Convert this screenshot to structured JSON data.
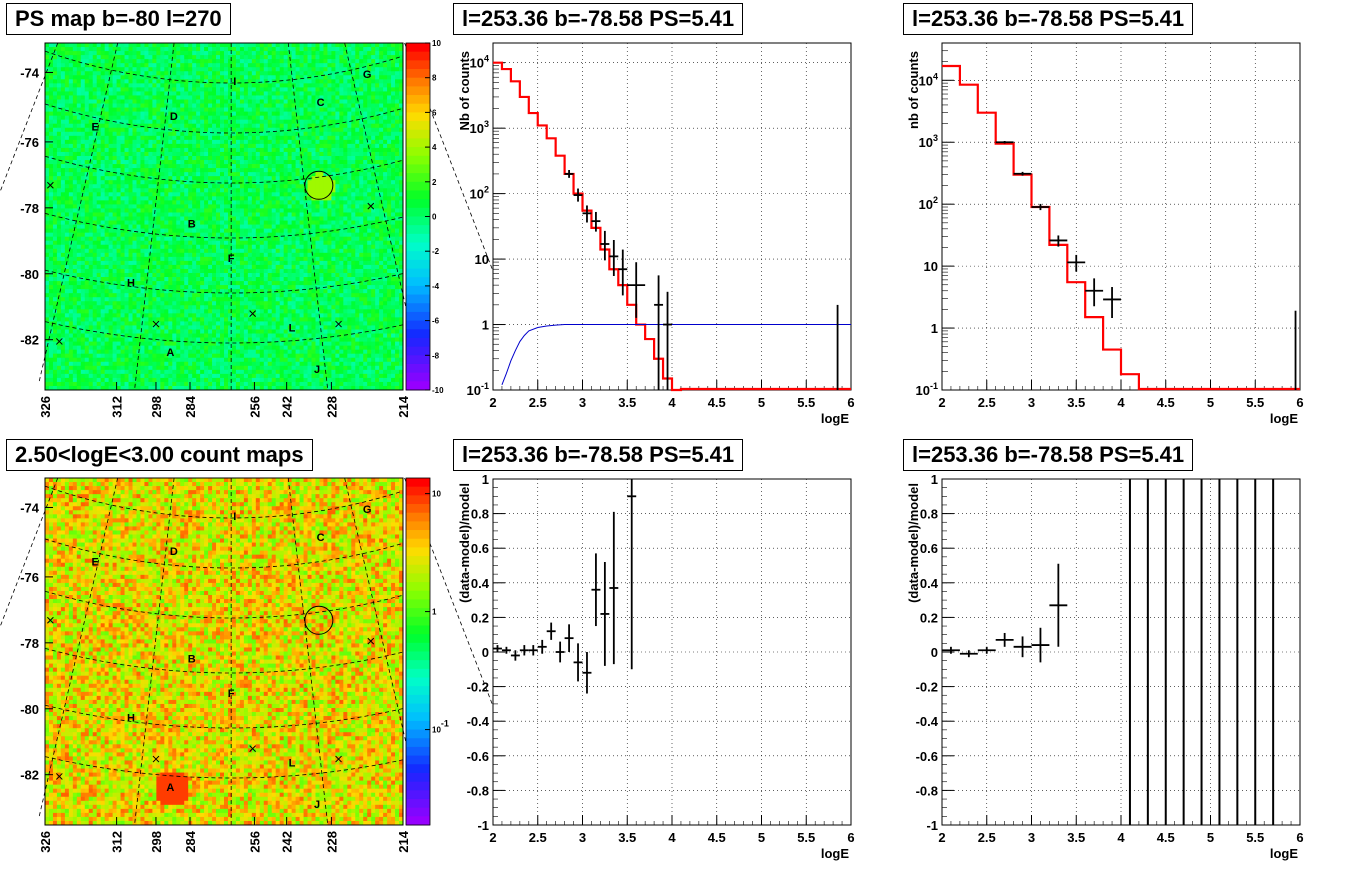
{
  "chart_data": [
    {
      "id": "ps_map",
      "type": "heatmap",
      "title": "PS map b=-80 l=270",
      "y_ticks": [
        "-74",
        "-76",
        "-78",
        "-80",
        "-82"
      ],
      "x_ticks": [
        "326",
        "312",
        "298",
        "284",
        "256",
        "242",
        "228",
        "214"
      ],
      "colorbar_ticks": [
        "10",
        "8",
        "6",
        "4",
        "2",
        "0",
        "-2",
        "-4",
        "-6",
        "-8",
        "-10"
      ],
      "colorbar_range": [
        -10,
        10
      ],
      "region_labels": [
        "G",
        "I",
        "C",
        "E",
        "D",
        "B",
        "F",
        "H",
        "L",
        "A",
        "J"
      ],
      "grid": true
    },
    {
      "id": "count_spectrum",
      "type": "line",
      "title": "l=253.36 b=-78.58 PS=5.41",
      "xlabel": "logE",
      "ylabel": "Nb of counts",
      "xlim": [
        2,
        6
      ],
      "ylim": [
        0.1,
        20000
      ],
      "log_y": true,
      "x_ticks": [
        "2",
        "2.5",
        "3",
        "3.5",
        "4",
        "4.5",
        "5",
        "5.5",
        "6"
      ],
      "y_ticks": [
        "10^{-1}",
        "1",
        "10",
        "10^{2}",
        "10^{3}",
        "10^{4}"
      ],
      "model_bins": {
        "edges": [
          2.0,
          2.1,
          2.2,
          2.3,
          2.4,
          2.5,
          2.6,
          2.7,
          2.8,
          2.9,
          3.0,
          3.1,
          3.2,
          3.3,
          3.4,
          3.5,
          3.6,
          3.7,
          3.8,
          3.9,
          4.0,
          4.1
        ],
        "values": [
          10000,
          8000,
          5200,
          3000,
          1700,
          1100,
          700,
          380,
          200,
          100,
          55,
          30,
          14,
          7,
          4,
          2,
          1,
          0.6,
          0.3,
          0.15,
          0.1
        ]
      },
      "efficiency_curve": {
        "x": [
          2.1,
          2.15,
          2.2,
          2.25,
          2.3,
          2.35,
          2.4,
          2.5,
          2.6,
          2.7,
          2.8,
          3.0,
          3.5,
          6.0
        ],
        "y": [
          0.12,
          0.18,
          0.28,
          0.4,
          0.55,
          0.68,
          0.8,
          0.9,
          0.95,
          0.98,
          1.0,
          1.0,
          1.0,
          1.0
        ]
      },
      "data_points": [
        {
          "x": 2.85,
          "y": 200,
          "xerr": 0.05,
          "yerr": [
            0.06,
            0.06
          ]
        },
        {
          "x": 2.95,
          "y": 95,
          "xerr": 0.05,
          "yerr": [
            0.1,
            0.1
          ]
        },
        {
          "x": 3.05,
          "y": 50,
          "xerr": 0.05,
          "yerr": [
            0.14,
            0.12
          ]
        },
        {
          "x": 3.15,
          "y": 38,
          "xerr": 0.05,
          "yerr": [
            0.16,
            0.14
          ]
        },
        {
          "x": 3.25,
          "y": 17,
          "xerr": 0.05,
          "yerr": [
            0.25,
            0.2
          ]
        },
        {
          "x": 3.35,
          "y": 11,
          "xerr": 0.05,
          "yerr": [
            0.3,
            0.25
          ]
        },
        {
          "x": 3.45,
          "y": 7,
          "xerr": 0.05,
          "yerr": [
            0.4,
            0.3
          ]
        },
        {
          "x": 3.6,
          "y": 4,
          "xerr": 0.1,
          "yerr": [
            0.5,
            0.35
          ]
        },
        {
          "x": 3.85,
          "y": 2,
          "xerr": 0.05,
          "yerr": [
            1.3,
            0.45
          ]
        },
        {
          "x": 3.95,
          "y": 1,
          "xerr": 0.05,
          "yerr": [
            1.0,
            0.5
          ]
        },
        {
          "x": 5.85,
          "y": 1,
          "xerr": 0.0,
          "yerr": [
            1.0,
            0.3
          ]
        }
      ]
    },
    {
      "id": "count_spectrum_rebinned",
      "type": "line",
      "title": "l=253.36 b=-78.58 PS=5.41",
      "xlabel": "logE",
      "ylabel": "nb of counts",
      "xlim": [
        2,
        6
      ],
      "ylim": [
        0.1,
        40000
      ],
      "log_y": true,
      "x_ticks": [
        "2",
        "2.5",
        "3",
        "3.5",
        "4",
        "4.5",
        "5",
        "5.5",
        "6"
      ],
      "y_ticks": [
        "10^{-1}",
        "1",
        "10",
        "10^{2}",
        "10^{3}",
        "10^{4}"
      ],
      "model_bins": {
        "edges": [
          2.0,
          2.2,
          2.4,
          2.6,
          2.8,
          3.0,
          3.2,
          3.4,
          3.6,
          3.8,
          4.0,
          4.2
        ],
        "values": [
          17000,
          8500,
          3000,
          950,
          300,
          90,
          22,
          5.5,
          1.5,
          0.45,
          0.18
        ]
      },
      "data_points": [
        {
          "x": 2.7,
          "y": 1000,
          "xerr": 0.1,
          "yerr": [
            0.02,
            0.02
          ]
        },
        {
          "x": 2.9,
          "y": 310,
          "xerr": 0.1,
          "yerr": [
            0.03,
            0.03
          ]
        },
        {
          "x": 3.1,
          "y": 90,
          "xerr": 0.1,
          "yerr": [
            0.05,
            0.05
          ]
        },
        {
          "x": 3.3,
          "y": 26,
          "xerr": 0.1,
          "yerr": [
            0.1,
            0.08
          ]
        },
        {
          "x": 3.5,
          "y": 11.5,
          "xerr": 0.1,
          "yerr": [
            0.15,
            0.12
          ]
        },
        {
          "x": 3.7,
          "y": 4,
          "xerr": 0.1,
          "yerr": [
            0.25,
            0.2
          ]
        },
        {
          "x": 3.9,
          "y": 2.9,
          "xerr": 0.1,
          "yerr": [
            0.3,
            0.2
          ]
        },
        {
          "x": 5.95,
          "y": 1,
          "xerr": 0.0,
          "yerr": [
            1.0,
            0.28
          ]
        }
      ]
    },
    {
      "id": "count_map",
      "type": "heatmap",
      "title": "2.50<logE<3.00 count maps",
      "y_ticks": [
        "-74",
        "-76",
        "-78",
        "-80",
        "-82"
      ],
      "x_ticks": [
        "326",
        "312",
        "298",
        "284",
        "256",
        "242",
        "228",
        "214"
      ],
      "colorbar_ticks": [
        "10",
        "1",
        "10^{-1}"
      ],
      "log_scale": true,
      "region_labels": [
        "G",
        "I",
        "C",
        "E",
        "D",
        "B",
        "F",
        "H",
        "L",
        "A",
        "J"
      ],
      "grid": true
    },
    {
      "id": "residuals",
      "type": "scatter",
      "title": "l=253.36 b=-78.58 PS=5.41",
      "xlabel": "logE",
      "ylabel": "(data-model)/model",
      "xlim": [
        2,
        6
      ],
      "ylim": [
        -1,
        1
      ],
      "x_ticks": [
        "2",
        "2.5",
        "3",
        "3.5",
        "4",
        "4.5",
        "5",
        "5.5",
        "6"
      ],
      "y_ticks": [
        "-1",
        "-0.8",
        "-0.6",
        "-0.4",
        "-0.2",
        "0",
        "0.2",
        "0.4",
        "0.6",
        "0.8",
        "1"
      ],
      "points": [
        {
          "x": 2.05,
          "y": 0.02,
          "xerr": 0.05,
          "yerr": 0.02
        },
        {
          "x": 2.15,
          "y": 0.01,
          "xerr": 0.05,
          "yerr": 0.02
        },
        {
          "x": 2.25,
          "y": -0.02,
          "xerr": 0.05,
          "yerr": 0.03
        },
        {
          "x": 2.35,
          "y": 0.01,
          "xerr": 0.05,
          "yerr": 0.03
        },
        {
          "x": 2.45,
          "y": 0.01,
          "xerr": 0.05,
          "yerr": 0.03
        },
        {
          "x": 2.55,
          "y": 0.03,
          "xerr": 0.05,
          "yerr": 0.04
        },
        {
          "x": 2.65,
          "y": 0.12,
          "xerr": 0.05,
          "yerr": 0.05
        },
        {
          "x": 2.75,
          "y": 0.0,
          "xerr": 0.05,
          "yerr": 0.06
        },
        {
          "x": 2.85,
          "y": 0.08,
          "xerr": 0.05,
          "yerr": 0.08
        },
        {
          "x": 2.95,
          "y": -0.06,
          "xerr": 0.05,
          "yerr": 0.11
        },
        {
          "x": 3.05,
          "y": -0.12,
          "xerr": 0.05,
          "yerr": 0.12
        },
        {
          "x": 3.15,
          "y": 0.36,
          "xerr": 0.05,
          "yerr": 0.21
        },
        {
          "x": 3.25,
          "y": 0.22,
          "xerr": 0.05,
          "yerr": 0.3
        },
        {
          "x": 3.35,
          "y": 0.37,
          "xerr": 0.05,
          "yerr": 0.44
        },
        {
          "x": 3.55,
          "y": 0.9,
          "xerr": 0.05,
          "yerr": 1.0
        }
      ]
    },
    {
      "id": "residuals_rebinned",
      "type": "scatter",
      "title": "l=253.36 b=-78.58 PS=5.41",
      "xlabel": "logE",
      "ylabel": "(data-model)/model",
      "xlim": [
        2,
        6
      ],
      "ylim": [
        -1,
        1
      ],
      "x_ticks": [
        "2",
        "2.5",
        "3",
        "3.5",
        "4",
        "4.5",
        "5",
        "5.5",
        "6"
      ],
      "y_ticks": [
        "-1",
        "-0.8",
        "-0.6",
        "-0.4",
        "-0.2",
        "0",
        "0.2",
        "0.4",
        "0.6",
        "0.8",
        "1"
      ],
      "points": [
        {
          "x": 2.1,
          "y": 0.01,
          "xerr": 0.1,
          "yerr": 0.02
        },
        {
          "x": 2.3,
          "y": -0.01,
          "xerr": 0.1,
          "yerr": 0.02
        },
        {
          "x": 2.5,
          "y": 0.01,
          "xerr": 0.1,
          "yerr": 0.02
        },
        {
          "x": 2.7,
          "y": 0.07,
          "xerr": 0.1,
          "yerr": 0.04
        },
        {
          "x": 2.9,
          "y": 0.03,
          "xerr": 0.1,
          "yerr": 0.06
        },
        {
          "x": 3.1,
          "y": 0.04,
          "xerr": 0.1,
          "yerr": 0.1
        },
        {
          "x": 3.3,
          "y": 0.27,
          "xerr": 0.1,
          "yerr": 0.24
        }
      ],
      "full_range_bars_x": [
        4.1,
        4.3,
        4.5,
        4.7,
        4.9,
        5.1,
        5.3,
        5.5,
        5.7
      ]
    }
  ]
}
